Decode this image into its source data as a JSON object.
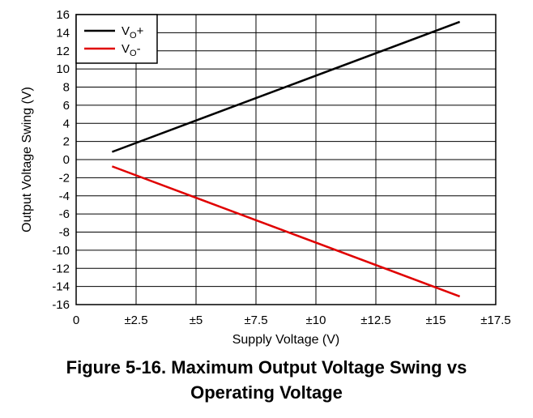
{
  "chart_data": {
    "type": "line",
    "xlabel": "Supply Voltage (V)",
    "ylabel": "Output Voltage Swing (V)",
    "xlim": [
      0,
      17.5
    ],
    "ylim": [
      -16,
      16
    ],
    "x_ticks": [
      0,
      2.5,
      5,
      7.5,
      10,
      12.5,
      15,
      17.5
    ],
    "x_tick_labels": [
      "0",
      "±2.5",
      "±5",
      "±7.5",
      "±10",
      "±12.5",
      "±15",
      "±17.5"
    ],
    "y_ticks": [
      16,
      14,
      12,
      10,
      8,
      6,
      4,
      2,
      0,
      -2,
      -4,
      -6,
      -8,
      -10,
      -12,
      -14,
      -16
    ],
    "y_tick_labels": [
      "16",
      "14",
      "12",
      "10",
      "8",
      "6",
      "4",
      "2",
      "0",
      "-2",
      "-4",
      "-6",
      "-8",
      "-10",
      "-12",
      "-14",
      "-16"
    ],
    "grid": true,
    "legend_position": "top-left",
    "series": [
      {
        "name": "VO+",
        "name_main": "V",
        "name_sub": "O",
        "name_suffix": "+",
        "color": "#000000",
        "x": [
          1.5,
          16
        ],
        "y": [
          0.85,
          15.2
        ]
      },
      {
        "name": "VO-",
        "name_main": "V",
        "name_sub": "O",
        "name_suffix": "-",
        "color": "#e00000",
        "x": [
          1.5,
          16
        ],
        "y": [
          -0.75,
          -15.1
        ]
      }
    ]
  },
  "caption": {
    "line1": "Figure 5-16. Maximum Output Voltage Swing vs",
    "line2": "Operating Voltage"
  }
}
